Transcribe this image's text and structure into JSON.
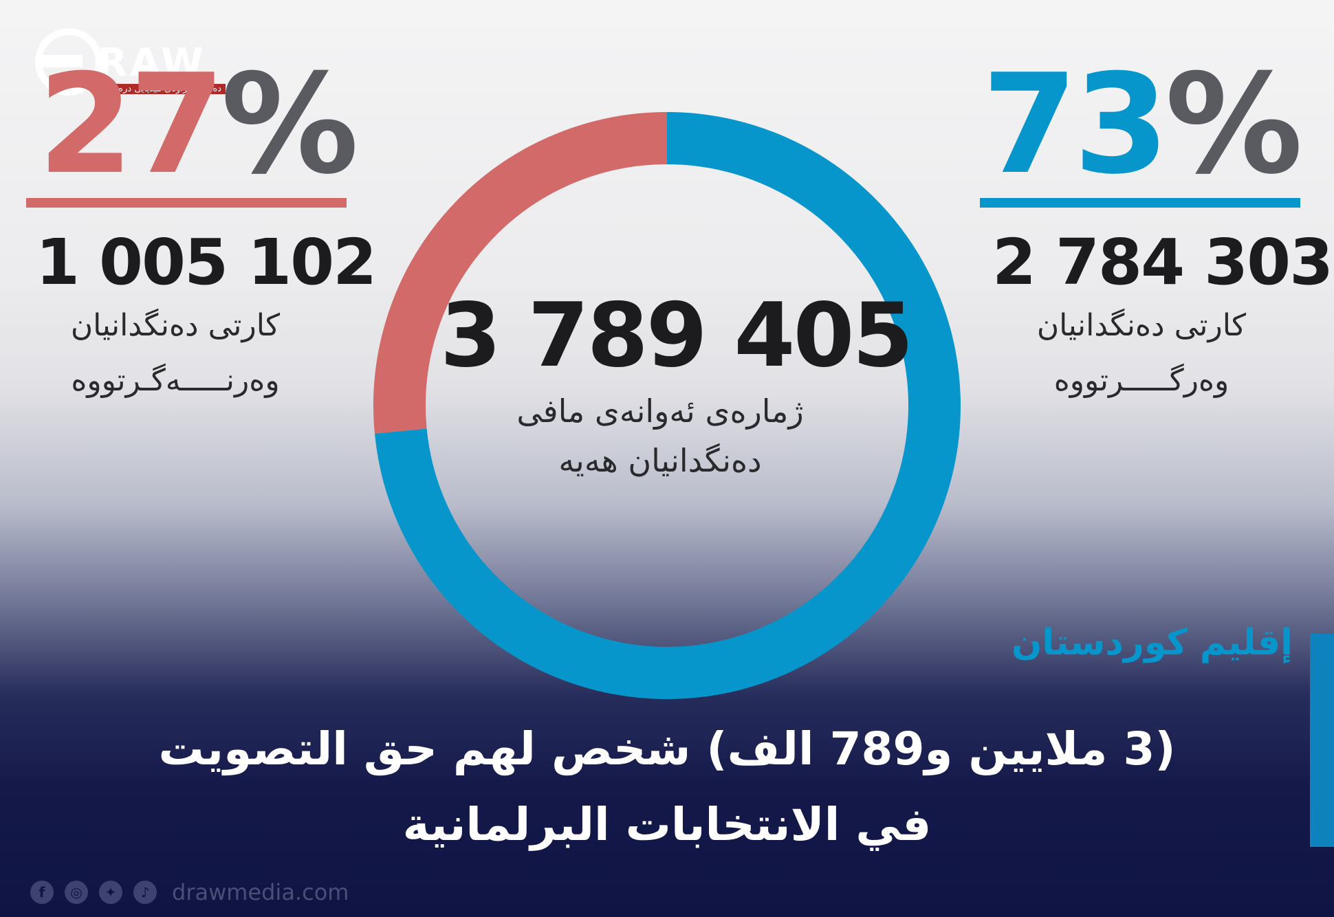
{
  "logo": {
    "word": "RAW",
    "tagline": "دەزگای زراوەی میدیایی درەو"
  },
  "left": {
    "percent": "27",
    "sign": "%",
    "count": "1 005 102",
    "label_line1": "کارتی دەنگدانیان",
    "label_line2": "وەرنـــــەگـرتووە"
  },
  "right": {
    "percent": "73",
    "sign": "%",
    "count": "2 784 303",
    "label_line1": "کارتی دەنگدانیان",
    "label_line2": "وەرگـــــرتووە"
  },
  "center": {
    "total": "3 789 405",
    "label_line1": "ژمارەی ئەوانەی مافی",
    "label_line2": "دەنگدانیان هەیە"
  },
  "region": "إقليم كوردستان",
  "headline_line1": "(3 ملايين و789 الف) شخص لهم حق التصويت",
  "headline_line2": "في الانتخابات البرلمانية",
  "footer": {
    "website": "drawmedia.com",
    "icons": [
      "facebook-icon",
      "instagram-icon",
      "twitter-icon",
      "tiktok-icon"
    ]
  },
  "colors": {
    "received": "#0796cc",
    "not_received": "#d16a68"
  },
  "chart_data": {
    "type": "pie",
    "donut": true,
    "total": 3789405,
    "slices": [
      {
        "label": "وەرگرتووە",
        "value": 2784303,
        "percent": 73,
        "color": "#0796cc"
      },
      {
        "label": "وەرنەگرتووە",
        "value": 1005102,
        "percent": 27,
        "color": "#d16a68"
      }
    ]
  }
}
